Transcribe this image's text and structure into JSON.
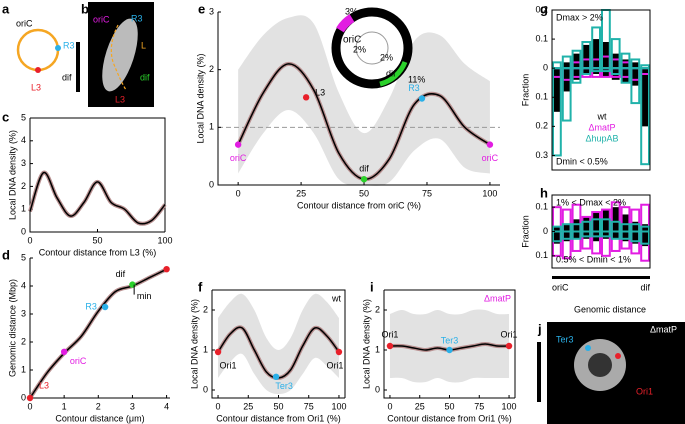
{
  "figure": {
    "a": {
      "letter": "a",
      "labels": [
        "oriC",
        "R3",
        "dif",
        "L3"
      ]
    },
    "b": {
      "letter": "b",
      "labels": [
        "oriC",
        "R3",
        "L",
        "dif",
        "L3"
      ]
    },
    "c": {
      "letter": "c",
      "type": "line",
      "xlabel": "Contour distance from L3 (%)",
      "ylabel": "Local DNA density (%)",
      "x": [
        0,
        10,
        20,
        30,
        40,
        50,
        60,
        70,
        80,
        90,
        100
      ],
      "values": [
        0.9,
        2.6,
        1.5,
        0.7,
        1.3,
        2.2,
        1.3,
        1.0,
        0.4,
        0.5,
        1.2
      ],
      "xlim": [
        0,
        100
      ],
      "ylim": [
        0,
        5
      ],
      "xticks": [
        0,
        50,
        100
      ],
      "yticks": [
        0,
        1,
        2,
        3,
        4,
        5
      ],
      "color": "#000000",
      "points": []
    },
    "d": {
      "letter": "d",
      "type": "line",
      "xlabel": "Contour distance (μm)",
      "ylabel": "Genomic distance (Mbp)",
      "x": [
        0,
        0.5,
        1,
        1.5,
        2,
        2.5,
        3,
        3.5,
        4
      ],
      "values": [
        0,
        0.9,
        1.6,
        2.2,
        3.1,
        3.8,
        4.0,
        4.3,
        4.6
      ],
      "xlim": [
        0,
        4.1
      ],
      "ylim": [
        0,
        5
      ],
      "xticks": [
        0,
        1,
        2,
        3,
        4
      ],
      "yticks": [
        0,
        1,
        2,
        3,
        4,
        5
      ],
      "color": "#000000",
      "points": [
        {
          "label": "L3",
          "x": 0,
          "y": 0,
          "color": "#e8202a"
        },
        {
          "label": "oriC",
          "x": 1,
          "y": 1.65,
          "color": "#e21de2"
        },
        {
          "label": "R3",
          "x": 2.2,
          "y": 3.25,
          "color": "#2ab0e8"
        },
        {
          "label": "dif",
          "x": 3,
          "y": 4.05,
          "color": "#2bd12b"
        },
        {
          "label": "min",
          "x": 3.05,
          "y": 4.05,
          "color": "#000000"
        },
        {
          "x": 4,
          "y": 4.6,
          "color": "#e8202a"
        }
      ]
    },
    "e": {
      "letter": "e",
      "type": "line",
      "xlabel": "Contour distance from oriC (%)",
      "ylabel": "Local DNA density (%)",
      "x": [
        0,
        10,
        20,
        30,
        40,
        50,
        60,
        70,
        80,
        90,
        100
      ],
      "values": [
        0.7,
        1.6,
        2.1,
        1.65,
        0.55,
        0.1,
        0.45,
        1.4,
        1.55,
        1.0,
        0.7
      ],
      "upper": [
        2.0,
        2.6,
        2.9,
        2.8,
        1.6,
        0.9,
        1.5,
        2.5,
        2.6,
        2.1,
        1.8
      ],
      "lower": [
        0.2,
        0.9,
        1.3,
        0.9,
        0.1,
        0.0,
        0.05,
        0.6,
        0.8,
        0.3,
        0.2
      ],
      "xlim": [
        -8,
        104
      ],
      "ylim": [
        0,
        3
      ],
      "xticks": [
        0,
        25,
        50,
        75,
        100
      ],
      "yticks": [
        0,
        1,
        2,
        3
      ],
      "color": "#000000",
      "reference_line": 1,
      "points": [
        {
          "label": "oriC",
          "x": 0,
          "y": 0.7,
          "color": "#e21de2"
        },
        {
          "label": "L3",
          "x": 27,
          "y": 1.52,
          "color": "#e8202a"
        },
        {
          "label": "dif",
          "x": 50,
          "y": 0.1,
          "color": "#2bd12b"
        },
        {
          "label": "R3",
          "x": 73,
          "y": 1.5,
          "color": "#2ab0e8"
        },
        {
          "label": "oriC",
          "x": 100,
          "y": 0.7,
          "color": "#e21de2"
        }
      ],
      "inset": [
        "3%",
        "2%",
        "2%",
        "11%",
        "oriC",
        "dif"
      ]
    },
    "f": {
      "letter": "f",
      "type": "line",
      "xlabel": "Contour distance from Ori1 (%)",
      "ylabel": "Local DNA density (%)",
      "note": "wt",
      "x": [
        0,
        10,
        20,
        30,
        40,
        50,
        60,
        70,
        80,
        90,
        100
      ],
      "values": [
        0.95,
        1.4,
        1.55,
        1.0,
        0.45,
        0.3,
        0.5,
        1.1,
        1.55,
        1.35,
        0.95
      ],
      "upper": [
        1.8,
        2.2,
        2.4,
        2.0,
        1.3,
        1.0,
        1.3,
        2.0,
        2.4,
        2.2,
        1.8
      ],
      "lower": [
        0.3,
        0.7,
        0.9,
        0.4,
        0.0,
        -0.1,
        0.0,
        0.4,
        0.8,
        0.6,
        0.3
      ],
      "xlim": [
        -5,
        105
      ],
      "ylim": [
        -0.2,
        2.5
      ],
      "xticks": [
        0,
        25,
        50,
        75,
        100
      ],
      "yticks": [
        0,
        1,
        2
      ],
      "color": "#000000",
      "points": [
        {
          "label": "Ori1",
          "x": 0,
          "y": 0.95,
          "color": "#e8202a"
        },
        {
          "label": "Ter3",
          "x": 48,
          "y": 0.33,
          "color": "#2ab0e8"
        },
        {
          "label": "Ori1",
          "x": 100,
          "y": 0.95,
          "color": "#e8202a"
        }
      ]
    },
    "i": {
      "letter": "i",
      "type": "line",
      "xlabel": "Contour distance from Ori1 (%)",
      "ylabel": "Local DNA density (%)",
      "note": "ΔmatP",
      "x": [
        0,
        10,
        20,
        30,
        40,
        50,
        60,
        70,
        80,
        90,
        100
      ],
      "values": [
        1.1,
        1.1,
        1.05,
        1.0,
        1.05,
        1.0,
        1.05,
        1.1,
        1.15,
        1.1,
        1.1
      ],
      "upper": [
        1.9,
        2.0,
        1.9,
        1.9,
        2.0,
        1.9,
        1.9,
        2.0,
        2.0,
        1.9,
        1.9
      ],
      "lower": [
        0.3,
        0.3,
        0.2,
        0.2,
        0.3,
        0.2,
        0.2,
        0.3,
        0.3,
        0.3,
        0.3
      ],
      "xlim": [
        -5,
        105
      ],
      "ylim": [
        -0.2,
        2.5
      ],
      "xticks": [
        0,
        25,
        50,
        75,
        100
      ],
      "yticks": [
        0,
        1,
        2
      ],
      "color": "#000000",
      "points": [
        {
          "label": "Ori1",
          "x": 0,
          "y": 1.1,
          "color": "#e8202a"
        },
        {
          "label": "Ter3",
          "x": 50,
          "y": 1.0,
          "color": "#2ab0e8"
        },
        {
          "label": "Ori1",
          "x": 100,
          "y": 1.1,
          "color": "#e8202a"
        }
      ]
    },
    "g": {
      "letter": "g",
      "type": "hist",
      "ylabel": "Fraction",
      "top_note": "Dmax > 2%",
      "bottom_note": "Dmin < 0.5%",
      "ylim": [
        -0.35,
        0.2
      ],
      "yticks": [
        0.2,
        0.1,
        0,
        {
          "value": -0.1,
          "label": "0.1"
        },
        {
          "value": -0.2,
          "label": "0.2"
        },
        {
          "value": -0.3,
          "label": "0.3"
        }
      ],
      "series": [
        {
          "name": "wt",
          "color": "#000000",
          "dmax": [
            0,
            0.02,
            0.05,
            0.08,
            0.1,
            0.09,
            0.05,
            0.03,
            0.02,
            0
          ],
          "dmin": [
            0.15,
            0.08,
            0.04,
            0.02,
            0.02,
            0.03,
            0.04,
            0.05,
            0.06,
            0.2
          ]
        },
        {
          "name": "ΔmatP",
          "color": "#e21de2",
          "dmax": [
            0,
            0,
            0.02,
            0.03,
            0.03,
            0.04,
            0.03,
            0.02,
            0,
            0
          ],
          "dmin": [
            0.03,
            0.04,
            0.03,
            0.03,
            0.03,
            0.03,
            0.03,
            0.03,
            0.04,
            0.02
          ]
        },
        {
          "name": "ΔhupAB",
          "color": "#20b2aa",
          "dmax": [
            0.02,
            0.04,
            0.06,
            0.09,
            0.14,
            0.2,
            0.1,
            0.05,
            0.03,
            0.01
          ],
          "dmin": [
            0.3,
            0.18,
            0.05,
            0.02,
            0.01,
            0.01,
            0.02,
            0.05,
            0.12,
            0.33
          ]
        }
      ]
    },
    "h": {
      "letter": "h",
      "type": "hist",
      "ylabel": "Fraction",
      "top_note": "1% < Dmax < 2%",
      "bottom_note": "0.5% < Dmin < 1%",
      "xlabels": [
        "oriC",
        "dif"
      ],
      "ylim": [
        -0.15,
        0.15
      ],
      "yticks": [
        0.1,
        0,
        {
          "value": -0.1,
          "label": "0.1"
        }
      ],
      "series": [
        {
          "name": "wt",
          "color": "#000000",
          "dmax": [
            0.02,
            0.03,
            0.05,
            0.06,
            0.08,
            0.09,
            0.1,
            0.07,
            0.04,
            0.03
          ],
          "dmin": [
            0.05,
            0.04,
            0.03,
            0.03,
            0.04,
            0.03,
            0.03,
            0.04,
            0.05,
            0.06
          ]
        },
        {
          "name": "ΔmatP",
          "color": "#e21de2",
          "dmax": [
            0.1,
            0.09,
            0.11,
            0.06,
            0.08,
            0.09,
            0.12,
            0.1,
            0.09,
            0.11
          ],
          "dmin": [
            0.1,
            0.11,
            0.08,
            0.07,
            0.09,
            0.1,
            0.08,
            0.07,
            0.09,
            0.12
          ]
        },
        {
          "name": "ΔhupAB",
          "color": "#20b2aa",
          "dmax": [
            0.02,
            0.03,
            0.03,
            0.04,
            0.05,
            0.05,
            0.04,
            0.03,
            0.03,
            0.02
          ],
          "dmin": [
            0.04,
            0.03,
            0.03,
            0.02,
            0.02,
            0.02,
            0.03,
            0.03,
            0.04,
            0.05
          ]
        }
      ]
    },
    "j": {
      "letter": "j",
      "title": "Genomic distance",
      "note": "ΔmatP",
      "labels": [
        "Ter3",
        "Ori1"
      ]
    }
  }
}
